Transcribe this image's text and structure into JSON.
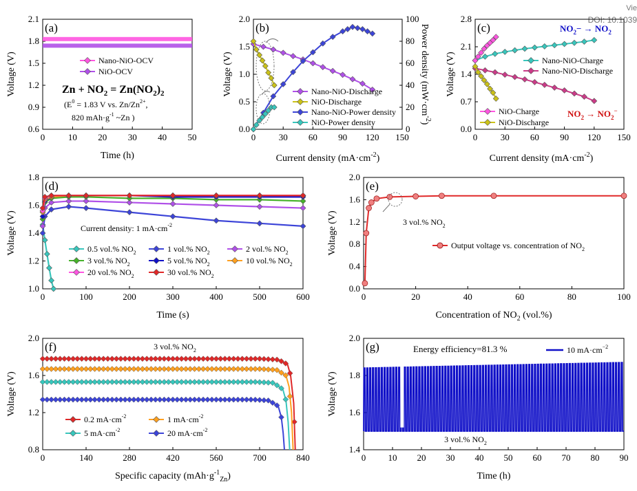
{
  "corner_text": {
    "view": "Vie",
    "doi": "DOI: 10.1039"
  },
  "colors": {
    "magenta": "#ff55e0",
    "purple": "#b050e8",
    "blue": "#3c44d8",
    "cyan": "#38c6bc",
    "olive": "#cbc218",
    "red": "#e02828",
    "orange": "#ffa020",
    "green": "#46b22a",
    "navy": "#1010c8",
    "pink": "#cc3a88",
    "darkred": "#d01010"
  },
  "chart_data": [
    {
      "id": "a",
      "type": "line",
      "panel_label": "(a)",
      "xlabel": "Time (h)",
      "ylabel": "Voltage (V)",
      "xlim": [
        0,
        50
      ],
      "ylim": [
        0.6,
        2.1
      ],
      "xticks": [
        0,
        10,
        20,
        30,
        40,
        50
      ],
      "yticks": [
        0.6,
        0.9,
        1.2,
        1.5,
        1.8,
        2.1
      ],
      "ytick_labels": [
        "0.6",
        "0.9",
        "1.2",
        "1.5",
        "1.8",
        "2.1"
      ],
      "series": [
        {
          "name": "Nano-NiO-OCV",
          "color": "#ff55e0",
          "x": [
            0,
            50
          ],
          "y": [
            1.83,
            1.83
          ]
        },
        {
          "name": "NiO-OCV",
          "color": "#b050e8",
          "x": [
            0,
            50
          ],
          "y": [
            1.74,
            1.74
          ]
        }
      ],
      "annotations": {
        "reaction": "Zn + NO",
        "sub1": "2",
        "eq": " = Zn(NO",
        "sub2": "2",
        "close": ")",
        "sub3": "2",
        "potential": "(E",
        "potential_sup": "0",
        "potential_rest": " = 1.83 V vs. Zn/Zn",
        "potential_sup2": "2+",
        "potential_end": ",",
        "capacity": "820 mAh·g",
        "capacity_sup": "-1",
        "capacity_end": " ~Zn )"
      }
    },
    {
      "id": "b",
      "type": "line",
      "panel_label": "(b)",
      "xlabel": "Current density (mA·cm",
      "xlabel_sup": "-2",
      "xlabel_end": ")",
      "ylabel": "Voltage (V)",
      "ylabel2": "Power density (mW·cm",
      "ylabel2_sup": "-2",
      "ylabel2_end": ")",
      "xlim": [
        0,
        150
      ],
      "ylim": [
        0,
        2.0
      ],
      "y2lim": [
        0,
        100
      ],
      "xticks": [
        0,
        30,
        60,
        90,
        120,
        150
      ],
      "yticks": [
        0.0,
        0.5,
        1.0,
        1.5,
        2.0
      ],
      "ytick_labels": [
        "0.0",
        "0.5",
        "1.0",
        "1.5",
        "2.0"
      ],
      "y2ticks": [
        0,
        20,
        40,
        60,
        80,
        100
      ],
      "series": [
        {
          "name": "Nano-NiO-Discharge",
          "color": "#b050e8",
          "axis": "left",
          "x": [
            0,
            10,
            20,
            30,
            40,
            50,
            60,
            70,
            80,
            90,
            100,
            110,
            120
          ],
          "y": [
            1.55,
            1.5,
            1.45,
            1.39,
            1.33,
            1.27,
            1.2,
            1.13,
            1.06,
            0.99,
            0.91,
            0.83,
            0.72
          ]
        },
        {
          "name": "NiO-Discharge",
          "color": "#cbc218",
          "axis": "left",
          "x": [
            0,
            3,
            6,
            9,
            12,
            15,
            18,
            21
          ],
          "y": [
            1.6,
            1.45,
            1.35,
            1.25,
            1.15,
            1.03,
            0.93,
            0.8
          ]
        },
        {
          "name": "Nano-NiO-Power density",
          "color": "#3c44d8",
          "axis": "right",
          "x": [
            0,
            10,
            20,
            30,
            40,
            50,
            60,
            70,
            80,
            90,
            95,
            100,
            105,
            110,
            115,
            120
          ],
          "y": [
            0,
            15,
            30,
            41,
            52,
            62,
            70,
            78,
            84,
            89,
            91,
            93,
            92,
            91,
            89,
            87
          ]
        },
        {
          "name": "NiO-Power density",
          "color": "#38c6bc",
          "axis": "right",
          "x": [
            0,
            3,
            6,
            9,
            12,
            15,
            18,
            21
          ],
          "y": [
            0,
            4,
            8,
            11,
            14,
            17,
            20,
            20
          ]
        }
      ]
    },
    {
      "id": "c",
      "type": "line",
      "panel_label": "(c)",
      "xlabel": "Current density (mA·cm",
      "xlabel_sup": "-2",
      "xlabel_end": ")",
      "ylabel": "Voltage (V)",
      "xlim": [
        0,
        150
      ],
      "ylim": [
        0,
        2.8
      ],
      "xticks": [
        0,
        30,
        60,
        90,
        120,
        150
      ],
      "yticks": [
        0.0,
        0.7,
        1.4,
        2.1,
        2.8
      ],
      "ytick_labels": [
        "0.0",
        "0.7",
        "1.4",
        "2.1",
        "2.8"
      ],
      "series": [
        {
          "name": "Nano-NiO-Charge",
          "color": "#38c6bc",
          "x": [
            0,
            10,
            20,
            30,
            40,
            50,
            60,
            70,
            80,
            90,
            100,
            110,
            120
          ],
          "y": [
            1.75,
            1.85,
            1.92,
            1.97,
            2.01,
            2.05,
            2.08,
            2.11,
            2.14,
            2.17,
            2.2,
            2.23,
            2.27
          ]
        },
        {
          "name": "Nano-NiO-Discharge",
          "color": "#cc3a88",
          "x": [
            0,
            10,
            20,
            30,
            40,
            50,
            60,
            70,
            80,
            90,
            100,
            110,
            120
          ],
          "y": [
            1.55,
            1.5,
            1.45,
            1.39,
            1.33,
            1.27,
            1.2,
            1.13,
            1.06,
            0.99,
            0.91,
            0.83,
            0.72
          ]
        },
        {
          "name": "NiO-Charge",
          "color": "#ff55e0",
          "x": [
            0,
            3,
            6,
            9,
            12,
            15,
            18,
            21
          ],
          "y": [
            1.75,
            1.85,
            1.95,
            2.05,
            2.13,
            2.2,
            2.27,
            2.35
          ]
        },
        {
          "name": "NiO-Discharge",
          "color": "#cbc218",
          "x": [
            0,
            3,
            6,
            9,
            12,
            15,
            18,
            21
          ],
          "y": [
            1.6,
            1.45,
            1.35,
            1.25,
            1.15,
            1.03,
            0.93,
            0.78
          ]
        }
      ],
      "annotations": {
        "top_right_a": "NO",
        "top_right_a_sub": "2",
        "top_right_b": "− → NO",
        "top_right_b_sub": "2",
        "bottom_right_a": "NO",
        "bottom_right_a_sub": "2",
        "bottom_right_b": " → NO",
        "bottom_right_b_sub": "2",
        "bottom_right_b_sup": "−"
      }
    },
    {
      "id": "d",
      "type": "line",
      "panel_label": "(d)",
      "xlabel": "Time (s)",
      "ylabel": "Voltage (V)",
      "xlim": [
        0,
        600
      ],
      "ylim": [
        1.0,
        1.8
      ],
      "xticks": [
        0,
        100,
        200,
        300,
        400,
        500,
        600
      ],
      "yticks": [
        1.0,
        1.2,
        1.4,
        1.6,
        1.8
      ],
      "ytick_labels": [
        "1.0",
        "1.2",
        "1.4",
        "1.6",
        "1.8"
      ],
      "note_prefix": "Current density: 1 mA·cm",
      "note_sup": "-2",
      "series": [
        {
          "name": "0.5 vol.% NO",
          "sub": "2",
          "color": "#38c6bc",
          "x": [
            0,
            5,
            10,
            15,
            20,
            25
          ],
          "y": [
            1.46,
            1.35,
            1.25,
            1.15,
            1.06,
            1.0
          ]
        },
        {
          "name": "1 vol.% NO",
          "sub": "2",
          "color": "#3c44d8",
          "x": [
            0,
            5,
            20,
            60,
            100,
            200,
            300,
            400,
            500,
            600
          ],
          "y": [
            1.4,
            1.52,
            1.57,
            1.59,
            1.58,
            1.55,
            1.52,
            1.49,
            1.47,
            1.45
          ]
        },
        {
          "name": "2 vol.% NO",
          "sub": "2",
          "color": "#b050e8",
          "x": [
            0,
            5,
            20,
            60,
            100,
            200,
            300,
            400,
            500,
            600
          ],
          "y": [
            1.45,
            1.58,
            1.62,
            1.63,
            1.63,
            1.62,
            1.61,
            1.6,
            1.59,
            1.58
          ]
        },
        {
          "name": "3 vol.% NO",
          "sub": "2",
          "color": "#46b22a",
          "x": [
            0,
            5,
            20,
            60,
            100,
            200,
            300,
            400,
            500,
            600
          ],
          "y": [
            1.5,
            1.62,
            1.65,
            1.66,
            1.66,
            1.65,
            1.65,
            1.64,
            1.64,
            1.63
          ]
        },
        {
          "name": "5 vol.% NO",
          "sub": "2",
          "color": "#1010c8",
          "x": [
            0,
            5,
            20,
            60,
            100,
            200,
            300,
            400,
            500,
            600
          ],
          "y": [
            1.52,
            1.63,
            1.66,
            1.67,
            1.67,
            1.67,
            1.66,
            1.66,
            1.66,
            1.66
          ]
        },
        {
          "name": "10 vol.% NO",
          "sub": "2",
          "color": "#ffa020",
          "x": [
            0,
            5,
            20,
            60,
            100,
            200,
            300,
            400,
            500,
            600
          ],
          "y": [
            1.55,
            1.64,
            1.66,
            1.67,
            1.67,
            1.67,
            1.67,
            1.67,
            1.67,
            1.67
          ]
        },
        {
          "name": "20 vol.% NO",
          "sub": "2",
          "color": "#ff55e0",
          "x": [
            0,
            5,
            20,
            60,
            100,
            200,
            300,
            400,
            500,
            600
          ],
          "y": [
            1.56,
            1.65,
            1.67,
            1.67,
            1.67,
            1.67,
            1.67,
            1.67,
            1.67,
            1.67
          ]
        },
        {
          "name": "30 vol.% NO",
          "sub": "2",
          "color": "#e02828",
          "x": [
            0,
            5,
            20,
            60,
            100,
            200,
            300,
            400,
            500,
            600
          ],
          "y": [
            1.58,
            1.66,
            1.67,
            1.67,
            1.67,
            1.67,
            1.67,
            1.67,
            1.67,
            1.67
          ]
        }
      ]
    },
    {
      "id": "e",
      "type": "line",
      "panel_label": "(e)",
      "xlabel": "Concentration of NO",
      "xlabel_sub": "2",
      "xlabel_end": " (vol.%)",
      "ylabel": "Voltage (V)",
      "xlim": [
        0,
        100
      ],
      "ylim": [
        0.0,
        2.0
      ],
      "xticks": [
        0,
        20,
        40,
        60,
        80,
        100
      ],
      "yticks": [
        0.0,
        0.4,
        0.8,
        1.2,
        1.6,
        2.0
      ],
      "ytick_labels": [
        "0.0",
        "0.4",
        "0.8",
        "1.2",
        "1.6",
        "2.0"
      ],
      "series": [
        {
          "name": "Output voltage vs.  concentration of NO",
          "sub": "2",
          "color": "#e02828",
          "x": [
            0.5,
            1,
            2,
            3,
            5,
            10,
            20,
            30,
            50,
            100
          ],
          "y": [
            0.1,
            1.0,
            1.45,
            1.55,
            1.62,
            1.65,
            1.66,
            1.67,
            1.67,
            1.67
          ]
        }
      ],
      "annotation": "3 vol.% NO",
      "annotation_sub": "2"
    },
    {
      "id": "f",
      "type": "line",
      "panel_label": "(f)",
      "xlabel": "Specific capacity (mAh·g",
      "xlabel_sup": "-1",
      "xlabel_sub": "Zn",
      "xlabel_end": ")",
      "ylabel": "Voltage (V)",
      "xlim": [
        0,
        840
      ],
      "ylim": [
        0.8,
        2.0
      ],
      "xticks": [
        0,
        140,
        280,
        420,
        560,
        700,
        840
      ],
      "yticks": [
        0.8,
        1.2,
        1.6,
        2.0
      ],
      "ytick_labels": [
        "0.8",
        "1.2",
        "1.6",
        "2.0"
      ],
      "title": "3 vol.% NO",
      "title_sub": "2",
      "series": [
        {
          "name": "0.2 mA·cm",
          "sup": "-2",
          "color": "#e02828",
          "x": [
            0,
            700,
            760,
            790,
            800,
            810,
            815
          ],
          "y": [
            1.78,
            1.78,
            1.77,
            1.72,
            1.6,
            1.3,
            0.8
          ]
        },
        {
          "name": "1 mA·cm",
          "sup": "-2",
          "color": "#ffa020",
          "x": [
            0,
            700,
            755,
            785,
            795,
            803,
            808
          ],
          "y": [
            1.67,
            1.67,
            1.66,
            1.6,
            1.48,
            1.2,
            0.8
          ]
        },
        {
          "name": "5 mA·cm",
          "sup": "-2",
          "color": "#38c6bc",
          "x": [
            0,
            690,
            745,
            775,
            785,
            792,
            797
          ],
          "y": [
            1.53,
            1.53,
            1.52,
            1.45,
            1.33,
            1.1,
            0.8
          ]
        },
        {
          "name": "20 mA·cm",
          "sup": "-2",
          "color": "#3c44d8",
          "x": [
            0,
            680,
            730,
            760,
            770,
            776,
            780
          ],
          "y": [
            1.34,
            1.34,
            1.33,
            1.27,
            1.15,
            0.98,
            0.8
          ]
        }
      ]
    },
    {
      "id": "g",
      "type": "line",
      "panel_label": "(g)",
      "xlabel": "Time (h)",
      "ylabel": "Voltage (V)",
      "xlim": [
        0,
        90
      ],
      "ylim": [
        1.4,
        2.0
      ],
      "xticks": [
        0,
        10,
        20,
        30,
        40,
        50,
        60,
        70,
        80,
        90
      ],
      "yticks": [
        1.4,
        1.6,
        1.8,
        2.0
      ],
      "ytick_labels": [
        "1.4",
        "1.6",
        "1.8",
        "2.0"
      ],
      "title": "Energy efficiency=81.3 %",
      "bottom_note": "3 vol.% NO",
      "bottom_note_sub": "2",
      "series": [
        {
          "name": "10 mA·cm",
          "sup": "−2",
          "color": "#1010c8",
          "cycle_period_h": 1,
          "x_start": 0,
          "x_end": 90,
          "high_start": 1.84,
          "high_end": 1.87,
          "low": 1.5
        }
      ]
    }
  ]
}
